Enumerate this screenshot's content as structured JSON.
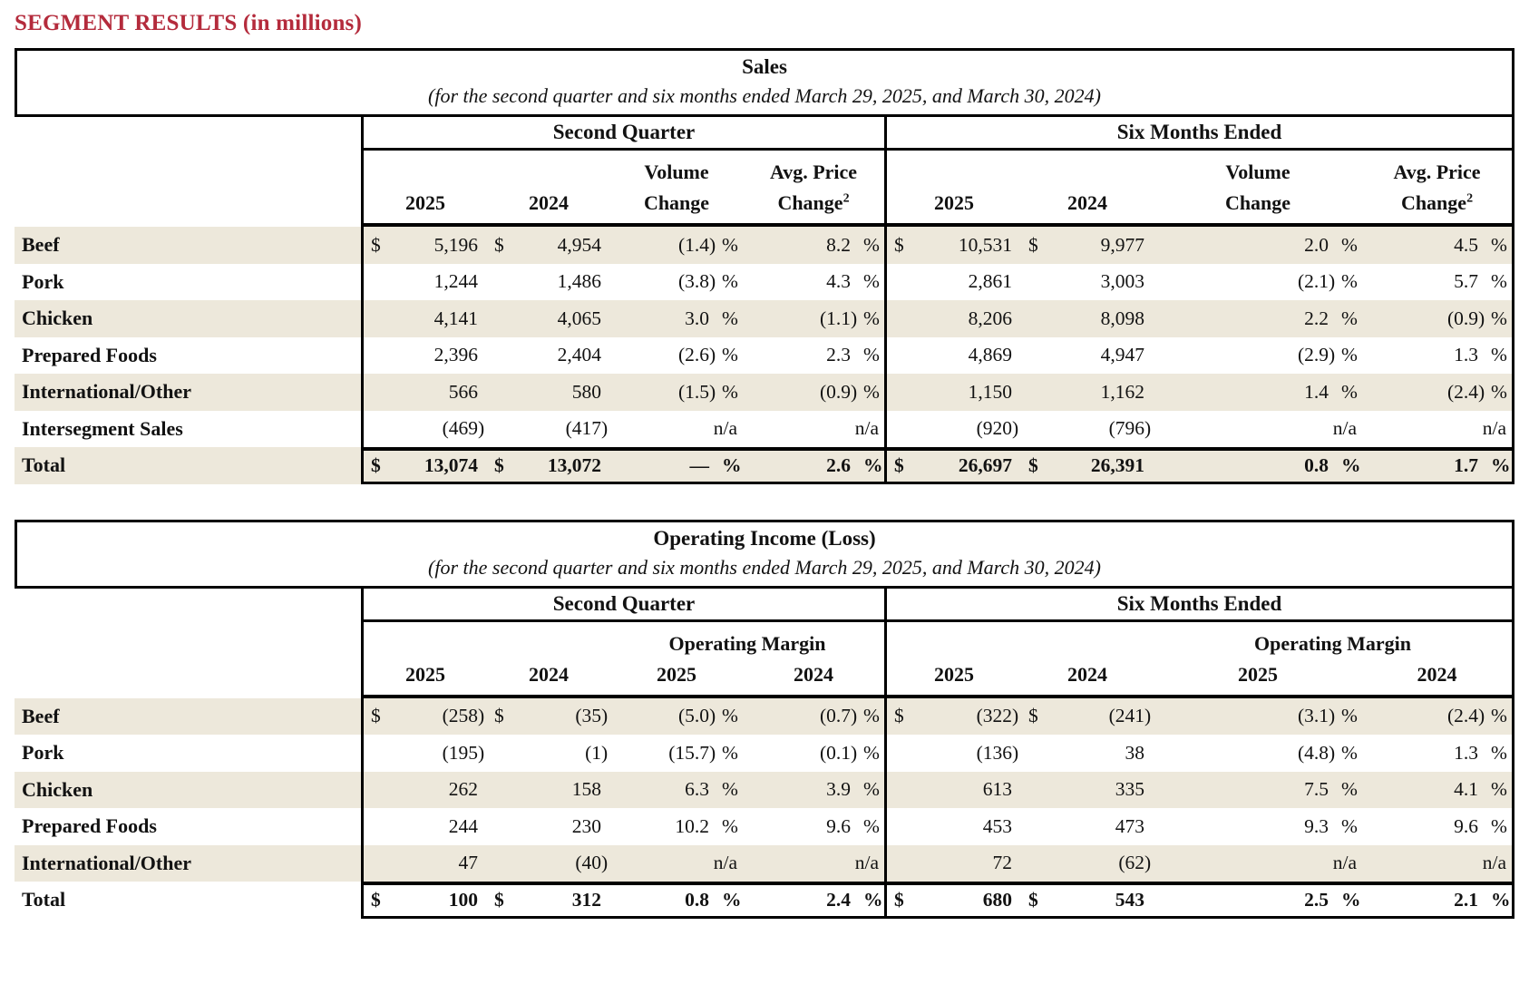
{
  "page_title": "SEGMENT RESULTS (in millions)",
  "colors": {
    "title_red": "#B42B3C",
    "row_shade_beige": "#EDE8DB",
    "border_black": "#000000"
  },
  "tables": [
    {
      "title": "Sales",
      "subtitle": "(for the second quarter and six months ended March 29, 2025, and March 30, 2024)",
      "periods": [
        "Second Quarter",
        "Six Months Ended"
      ],
      "years": [
        "2025",
        "2024"
      ],
      "col_headers": [
        {
          "line1": "Volume",
          "line2": "Change",
          "sup": ""
        },
        {
          "line1": "Avg. Price",
          "line2": "Change",
          "sup": "2"
        }
      ],
      "rows": [
        {
          "label": "Beef",
          "shaded": true,
          "total": false,
          "cells": [
            "$ 5,196",
            "$ 4,954",
            "(1.4) %",
            "8.2 %",
            "$ 10,531",
            "$ 9,977",
            "2.0 %",
            "4.5 %"
          ]
        },
        {
          "label": "Pork",
          "shaded": false,
          "total": false,
          "cells": [
            "1,244",
            "1,486",
            "(3.8) %",
            "4.3 %",
            "2,861",
            "3,003",
            "(2.1) %",
            "5.7 %"
          ]
        },
        {
          "label": "Chicken",
          "shaded": true,
          "total": false,
          "cells": [
            "4,141",
            "4,065",
            "3.0 %",
            "(1.1) %",
            "8,206",
            "8,098",
            "2.2 %",
            "(0.9) %"
          ]
        },
        {
          "label": "Prepared Foods",
          "shaded": false,
          "total": false,
          "cells": [
            "2,396",
            "2,404",
            "(2.6) %",
            "2.3 %",
            "4,869",
            "4,947",
            "(2.9) %",
            "1.3 %"
          ]
        },
        {
          "label": "International/Other",
          "shaded": true,
          "total": false,
          "cells": [
            "566",
            "580",
            "(1.5) %",
            "(0.9) %",
            "1,150",
            "1,162",
            "1.4 %",
            "(2.4) %"
          ]
        },
        {
          "label": "Intersegment Sales",
          "shaded": false,
          "total": false,
          "cells": [
            "(469)",
            "(417)",
            "n/a",
            "n/a",
            "(920)",
            "(796)",
            "n/a",
            "n/a"
          ]
        },
        {
          "label": "Total",
          "shaded": true,
          "total": true,
          "cells": [
            "$ 13,074",
            "$ 13,072",
            "— %",
            "2.6 %",
            "$ 26,697",
            "$ 26,391",
            "0.8 %",
            "1.7 %"
          ]
        }
      ]
    },
    {
      "title": "Operating Income (Loss)",
      "subtitle": "(for the second quarter and six months ended March 29, 2025, and March 30, 2024)",
      "periods": [
        "Second Quarter",
        "Six Months Ended"
      ],
      "margin_header": "Operating Margin",
      "years": [
        "2025",
        "2024",
        "2025",
        "2024"
      ],
      "rows": [
        {
          "label": "Beef",
          "shaded": true,
          "total": false,
          "cells": [
            "$ (258)",
            "$ (35)",
            "(5.0) %",
            "(0.7) %",
            "$ (322)",
            "$ (241)",
            "(3.1) %",
            "(2.4) %"
          ]
        },
        {
          "label": "Pork",
          "shaded": false,
          "total": false,
          "cells": [
            "(195)",
            "(1)",
            "(15.7) %",
            "(0.1) %",
            "(136)",
            "38",
            "(4.8) %",
            "1.3 %"
          ]
        },
        {
          "label": "Chicken",
          "shaded": true,
          "total": false,
          "cells": [
            "262",
            "158",
            "6.3 %",
            "3.9 %",
            "613",
            "335",
            "7.5 %",
            "4.1 %"
          ]
        },
        {
          "label": "Prepared Foods",
          "shaded": false,
          "total": false,
          "cells": [
            "244",
            "230",
            "10.2 %",
            "9.6 %",
            "453",
            "473",
            "9.3 %",
            "9.6 %"
          ]
        },
        {
          "label": "International/Other",
          "shaded": true,
          "total": false,
          "cells": [
            "47",
            "(40)",
            "n/a",
            "n/a",
            "72",
            "(62)",
            "n/a",
            "n/a"
          ]
        },
        {
          "label": "Total",
          "shaded": false,
          "total": true,
          "cells": [
            "$ 100",
            "$ 312",
            "0.8 %",
            "2.4 %",
            "$ 680",
            "$ 543",
            "2.5 %",
            "2.1 %"
          ]
        }
      ]
    }
  ]
}
